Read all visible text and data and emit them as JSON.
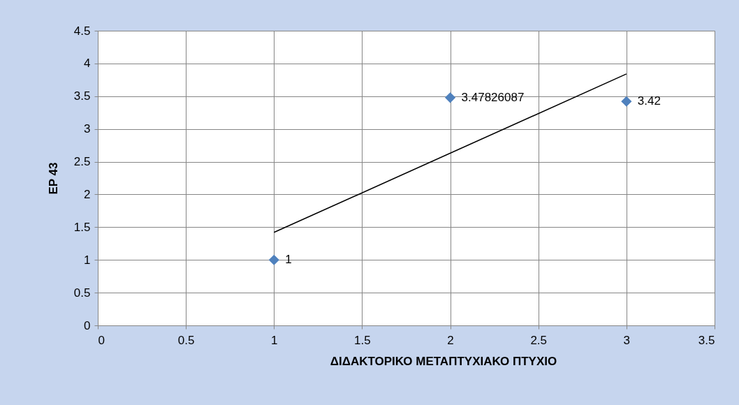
{
  "chart_data": {
    "type": "scatter",
    "xlabel": "ΔΙΔΑΚΤΟΡΙΚΟ          ΜΕΤΑΠΤΥΧΙΑΚΟ       ΠΤΥΧΙΟ",
    "ylabel": "EP 43",
    "x": [
      1,
      2,
      3
    ],
    "series": [
      {
        "color": "#4f81bd",
        "marker": "diamond",
        "values": [
          1,
          3.47826087,
          3.42
        ],
        "data_labels": true
      },
      {
        "type": "line",
        "color": "#000000",
        "x": [
          1,
          3
        ],
        "values": [
          1.42,
          3.84
        ],
        "line_style": "solid"
      }
    ],
    "xlim": [
      0,
      3.5
    ],
    "xticks": [
      0,
      0.5,
      1,
      1.5,
      2,
      2.5,
      3,
      3.5
    ],
    "ylim": [
      0,
      4.5
    ],
    "yticks": [
      0,
      0.5,
      1,
      1.5,
      2,
      2.5,
      3,
      3.5,
      4,
      4.5
    ],
    "grid": true
  }
}
